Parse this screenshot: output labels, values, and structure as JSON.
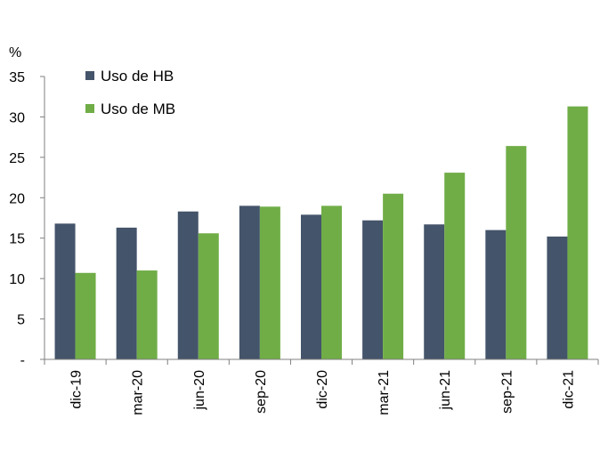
{
  "chart_data": {
    "type": "bar",
    "unit_label": "%",
    "categories": [
      "dic-19",
      "mar-20",
      "jun-20",
      "sep-20",
      "dic-20",
      "mar-21",
      "jun-21",
      "sep-21",
      "dic-21"
    ],
    "series": [
      {
        "name": "Uso de HB",
        "color": "#44546A",
        "values": [
          16.8,
          16.3,
          18.3,
          19.0,
          17.9,
          17.2,
          16.7,
          16.0,
          15.2
        ]
      },
      {
        "name": "Uso de MB",
        "color": "#70AD47",
        "values": [
          10.7,
          11.0,
          15.6,
          18.9,
          19.0,
          20.5,
          23.1,
          26.4,
          31.3
        ]
      }
    ],
    "ylim": [
      0,
      35
    ],
    "yticks": [
      "-",
      "5",
      "10",
      "15",
      "20",
      "25",
      "30",
      "35"
    ],
    "legend_position": "top-left",
    "grid": false
  }
}
